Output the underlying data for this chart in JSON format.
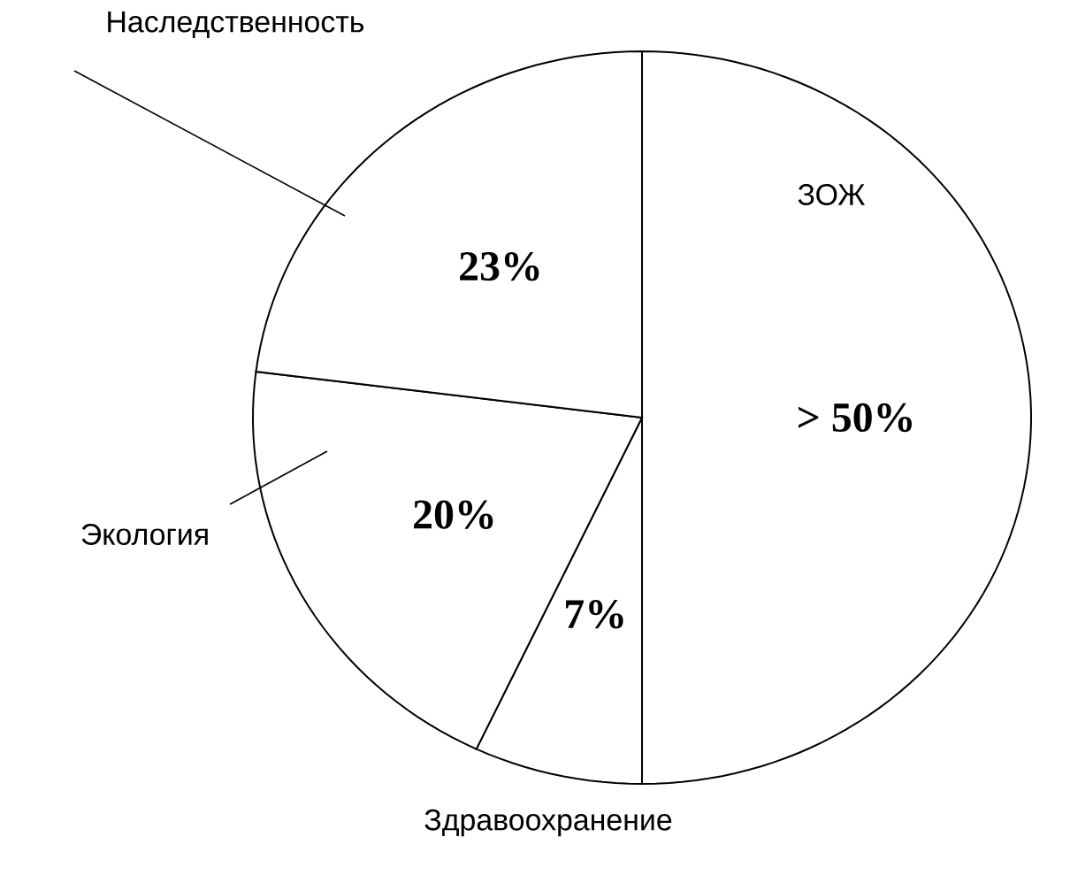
{
  "chart_data": {
    "type": "pie",
    "categories": [
      "ЗОЖ",
      "Здравоохранение",
      "Экология",
      "Наследственность"
    ],
    "values": [
      50,
      7,
      20,
      23
    ],
    "value_labels": [
      "> 50%",
      "7%",
      "20%",
      "23%"
    ],
    "colors": [
      "#ffffff",
      "#ffffff",
      "#ffffff",
      "#ffffff"
    ]
  }
}
